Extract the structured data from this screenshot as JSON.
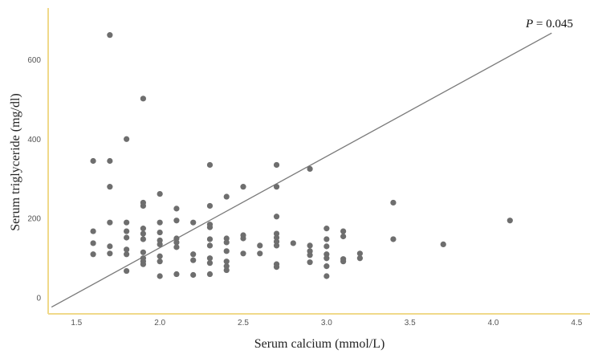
{
  "chart_data": {
    "type": "scatter",
    "xlabel": "Serum calcium (mmol/L)",
    "ylabel": "Serum triglyceride (mg/dl)",
    "xlim": [
      1.33,
      4.58
    ],
    "ylim": [
      -40,
      730
    ],
    "x_ticks": [
      "1.5",
      "2.0",
      "2.5",
      "3.0",
      "3.5",
      "4.0",
      "4.5"
    ],
    "y_ticks": [
      "0",
      "200",
      "400",
      "600"
    ],
    "grid": false,
    "colors": {
      "points": "#6e6e6e",
      "fit_line": "#7a7a7a",
      "axis": "#f0d98a"
    },
    "annotation": {
      "prefix": "P",
      "text": " = 0.045"
    },
    "fit_line": {
      "x": [
        1.35,
        4.35
      ],
      "y": [
        -23,
        667
      ]
    },
    "points": [
      [
        1.6,
        345
      ],
      [
        1.6,
        168
      ],
      [
        1.6,
        138
      ],
      [
        1.6,
        110
      ],
      [
        1.7,
        662
      ],
      [
        1.7,
        345
      ],
      [
        1.7,
        280
      ],
      [
        1.7,
        190
      ],
      [
        1.7,
        130
      ],
      [
        1.7,
        112
      ],
      [
        1.8,
        400
      ],
      [
        1.8,
        190
      ],
      [
        1.8,
        168
      ],
      [
        1.8,
        152
      ],
      [
        1.8,
        122
      ],
      [
        1.8,
        110
      ],
      [
        1.8,
        68
      ],
      [
        1.9,
        502
      ],
      [
        1.9,
        240
      ],
      [
        1.9,
        232
      ],
      [
        1.9,
        175
      ],
      [
        1.9,
        162
      ],
      [
        1.9,
        148
      ],
      [
        1.9,
        115
      ],
      [
        1.9,
        100
      ],
      [
        1.9,
        92
      ],
      [
        1.9,
        85
      ],
      [
        2.0,
        262
      ],
      [
        2.0,
        190
      ],
      [
        2.0,
        165
      ],
      [
        2.0,
        145
      ],
      [
        2.0,
        135
      ],
      [
        2.0,
        105
      ],
      [
        2.0,
        92
      ],
      [
        2.0,
        55
      ],
      [
        2.1,
        225
      ],
      [
        2.1,
        195
      ],
      [
        2.1,
        150
      ],
      [
        2.1,
        140
      ],
      [
        2.1,
        128
      ],
      [
        2.1,
        60
      ],
      [
        2.2,
        190
      ],
      [
        2.2,
        110
      ],
      [
        2.2,
        95
      ],
      [
        2.2,
        58
      ],
      [
        2.3,
        335
      ],
      [
        2.3,
        232
      ],
      [
        2.3,
        185
      ],
      [
        2.3,
        178
      ],
      [
        2.3,
        148
      ],
      [
        2.3,
        132
      ],
      [
        2.3,
        100
      ],
      [
        2.3,
        88
      ],
      [
        2.3,
        60
      ],
      [
        2.4,
        255
      ],
      [
        2.4,
        150
      ],
      [
        2.4,
        140
      ],
      [
        2.4,
        118
      ],
      [
        2.4,
        92
      ],
      [
        2.4,
        80
      ],
      [
        2.4,
        70
      ],
      [
        2.5,
        280
      ],
      [
        2.5,
        158
      ],
      [
        2.5,
        150
      ],
      [
        2.5,
        112
      ],
      [
        2.6,
        132
      ],
      [
        2.6,
        112
      ],
      [
        2.7,
        335
      ],
      [
        2.7,
        280
      ],
      [
        2.7,
        205
      ],
      [
        2.7,
        162
      ],
      [
        2.7,
        152
      ],
      [
        2.7,
        142
      ],
      [
        2.7,
        132
      ],
      [
        2.7,
        85
      ],
      [
        2.7,
        78
      ],
      [
        2.8,
        138
      ],
      [
        2.9,
        325
      ],
      [
        2.9,
        132
      ],
      [
        2.9,
        118
      ],
      [
        2.9,
        108
      ],
      [
        2.9,
        90
      ],
      [
        3.0,
        175
      ],
      [
        3.0,
        148
      ],
      [
        3.0,
        130
      ],
      [
        3.0,
        110
      ],
      [
        3.0,
        100
      ],
      [
        3.0,
        80
      ],
      [
        3.0,
        55
      ],
      [
        3.1,
        168
      ],
      [
        3.1,
        155
      ],
      [
        3.1,
        98
      ],
      [
        3.1,
        92
      ],
      [
        3.2,
        112
      ],
      [
        3.2,
        100
      ],
      [
        3.4,
        240
      ],
      [
        3.4,
        148
      ],
      [
        3.7,
        135
      ],
      [
        4.1,
        195
      ]
    ]
  }
}
